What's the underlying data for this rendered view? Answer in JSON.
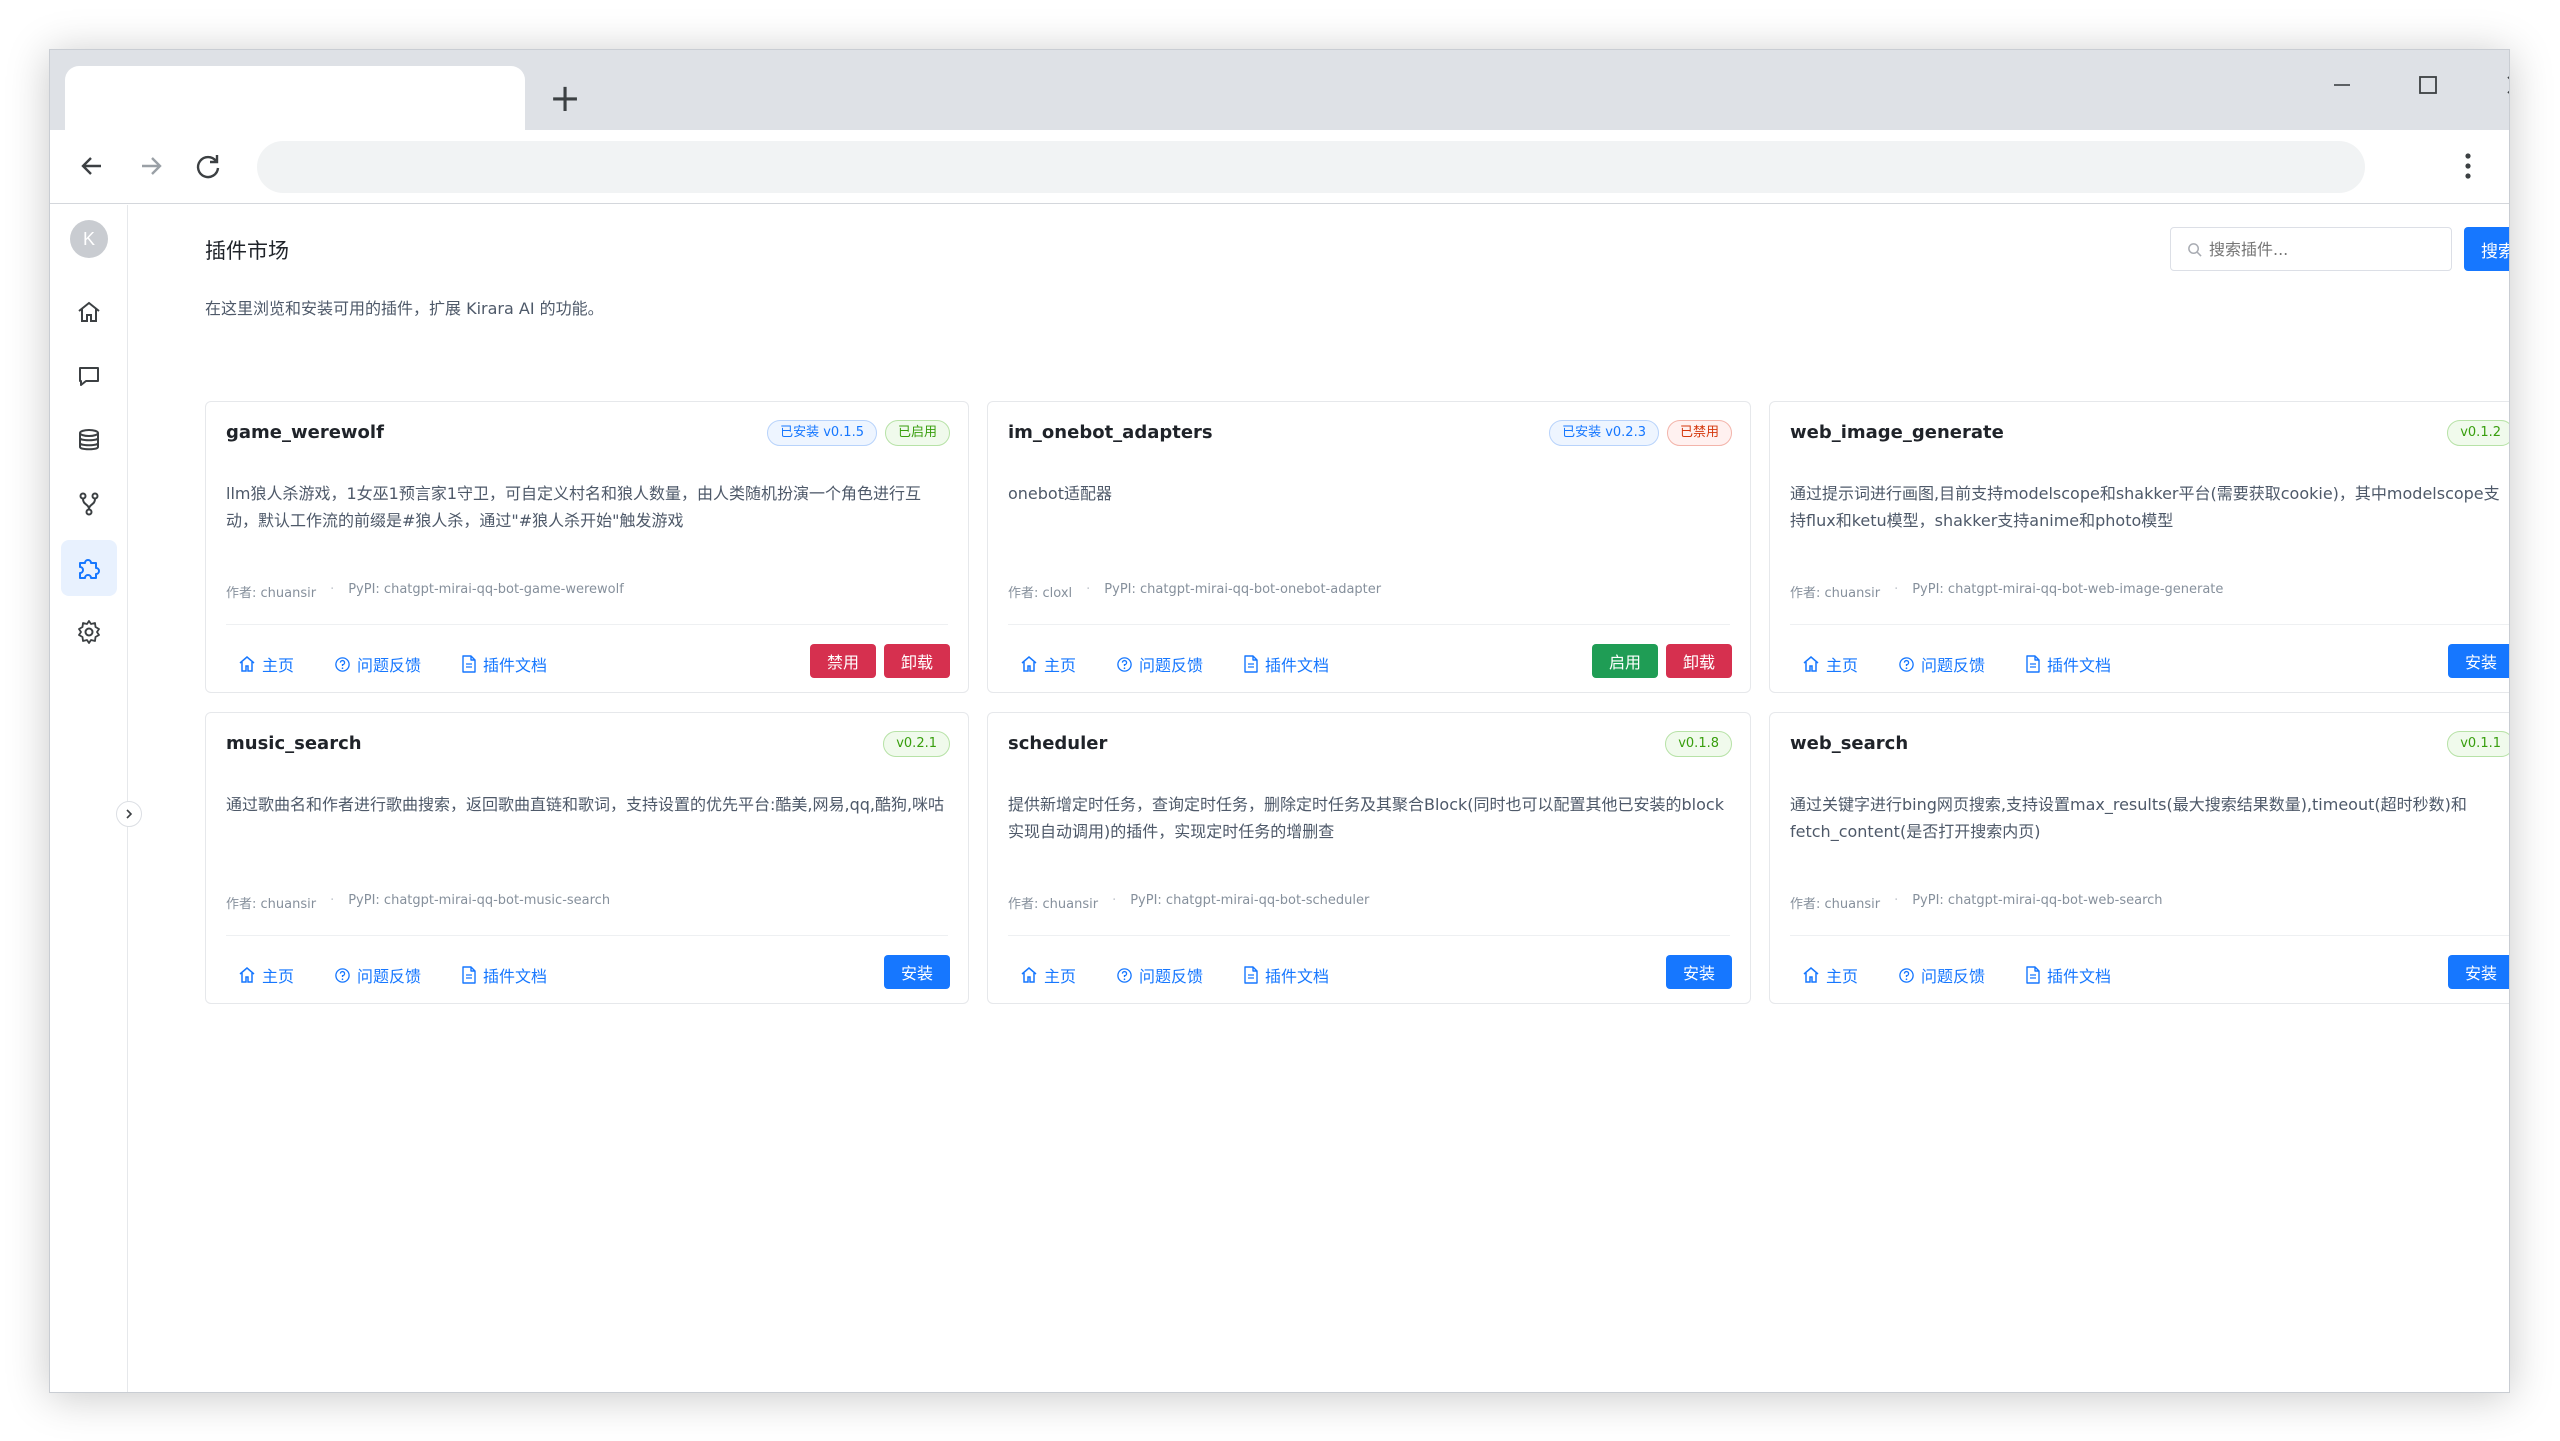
{
  "browser": {
    "new_tab_glyph": "+",
    "omnibox_value": ""
  },
  "sidebar": {
    "avatar_letter": "K",
    "items": [
      {
        "id": "home",
        "icon": "home-icon"
      },
      {
        "id": "chat",
        "icon": "chat-icon"
      },
      {
        "id": "database",
        "icon": "database-icon"
      },
      {
        "id": "workflow",
        "icon": "branch-icon"
      },
      {
        "id": "plugins",
        "icon": "puzzle-icon",
        "active": true
      },
      {
        "id": "settings",
        "icon": "gear-icon"
      }
    ]
  },
  "header": {
    "title": "插件市场",
    "description": "在这里浏览和安装可用的插件，扩展 Kirara AI 的功能。",
    "search_placeholder": "搜索插件...",
    "search_button": "搜索"
  },
  "colors": {
    "primary": "#1677ff",
    "danger": "#d6304f",
    "success": "#1f9d55"
  },
  "plugins": [
    {
      "name": "game_werewolf",
      "badges": [
        {
          "text": "已安装 v0.1.5",
          "tone": "blue"
        },
        {
          "text": "已启用",
          "tone": "green"
        }
      ],
      "description": "llm狼人杀游戏，1女巫1预言家1守卫，可自定义村名和狼人数量，由人类随机扮演一个角色进行互动，默认工作流的前缀是#狼人杀，通过\"#狼人杀开始\"触发游戏",
      "author": "作者: chuansir",
      "pypi": "PyPI: chatgpt-mirai-qq-bot-game-werewolf",
      "links": [
        "主页",
        "问题反馈",
        "插件文档"
      ],
      "actions": [
        {
          "text": "禁用",
          "tone": "danger"
        },
        {
          "text": "卸载",
          "tone": "danger"
        }
      ]
    },
    {
      "name": "im_onebot_adapters",
      "badges": [
        {
          "text": "已安装 v0.2.3",
          "tone": "blue"
        },
        {
          "text": "已禁用",
          "tone": "red"
        }
      ],
      "description": "onebot适配器",
      "author": "作者: cloxl",
      "pypi": "PyPI: chatgpt-mirai-qq-bot-onebot-adapter",
      "links": [
        "主页",
        "问题反馈",
        "插件文档"
      ],
      "actions": [
        {
          "text": "启用",
          "tone": "success"
        },
        {
          "text": "卸载",
          "tone": "danger"
        }
      ]
    },
    {
      "name": "web_image_generate",
      "badges": [
        {
          "text": "v0.1.2",
          "tone": "green"
        }
      ],
      "description": "通过提示词进行画图,目前支持modelscope和shakker平台(需要获取cookie)，其中modelscope支持flux和ketu模型，shakker支持anime和photo模型",
      "author": "作者: chuansir",
      "pypi": "PyPI: chatgpt-mirai-qq-bot-web-image-generate",
      "links": [
        "主页",
        "问题反馈",
        "插件文档"
      ],
      "actions": [
        {
          "text": "安装",
          "tone": "primary"
        }
      ]
    },
    {
      "name": "music_search",
      "badges": [
        {
          "text": "v0.2.1",
          "tone": "green"
        }
      ],
      "description": "通过歌曲名和作者进行歌曲搜索，返回歌曲直链和歌词，支持设置的优先平台:酷美,网易,qq,酷狗,咪咕",
      "author": "作者: chuansir",
      "pypi": "PyPI: chatgpt-mirai-qq-bot-music-search",
      "links": [
        "主页",
        "问题反馈",
        "插件文档"
      ],
      "actions": [
        {
          "text": "安装",
          "tone": "primary"
        }
      ]
    },
    {
      "name": "scheduler",
      "badges": [
        {
          "text": "v0.1.8",
          "tone": "green"
        }
      ],
      "description": "提供新增定时任务，查询定时任务，删除定时任务及其聚合Block(同时也可以配置其他已安装的block实现自动调用)的插件，实现定时任务的增删查",
      "author": "作者: chuansir",
      "pypi": "PyPI: chatgpt-mirai-qq-bot-scheduler",
      "links": [
        "主页",
        "问题反馈",
        "插件文档"
      ],
      "actions": [
        {
          "text": "安装",
          "tone": "primary"
        }
      ]
    },
    {
      "name": "web_search",
      "badges": [
        {
          "text": "v0.1.1",
          "tone": "green"
        }
      ],
      "description": "通过关键字进行bing网页搜索,支持设置max_results(最大搜索结果数量),timeout(超时秒数)和fetch_content(是否打开搜索内页)",
      "author": "作者: chuansir",
      "pypi": "PyPI: chatgpt-mirai-qq-bot-web-search",
      "links": [
        "主页",
        "问题反馈",
        "插件文档"
      ],
      "actions": [
        {
          "text": "安装",
          "tone": "primary"
        }
      ]
    }
  ]
}
